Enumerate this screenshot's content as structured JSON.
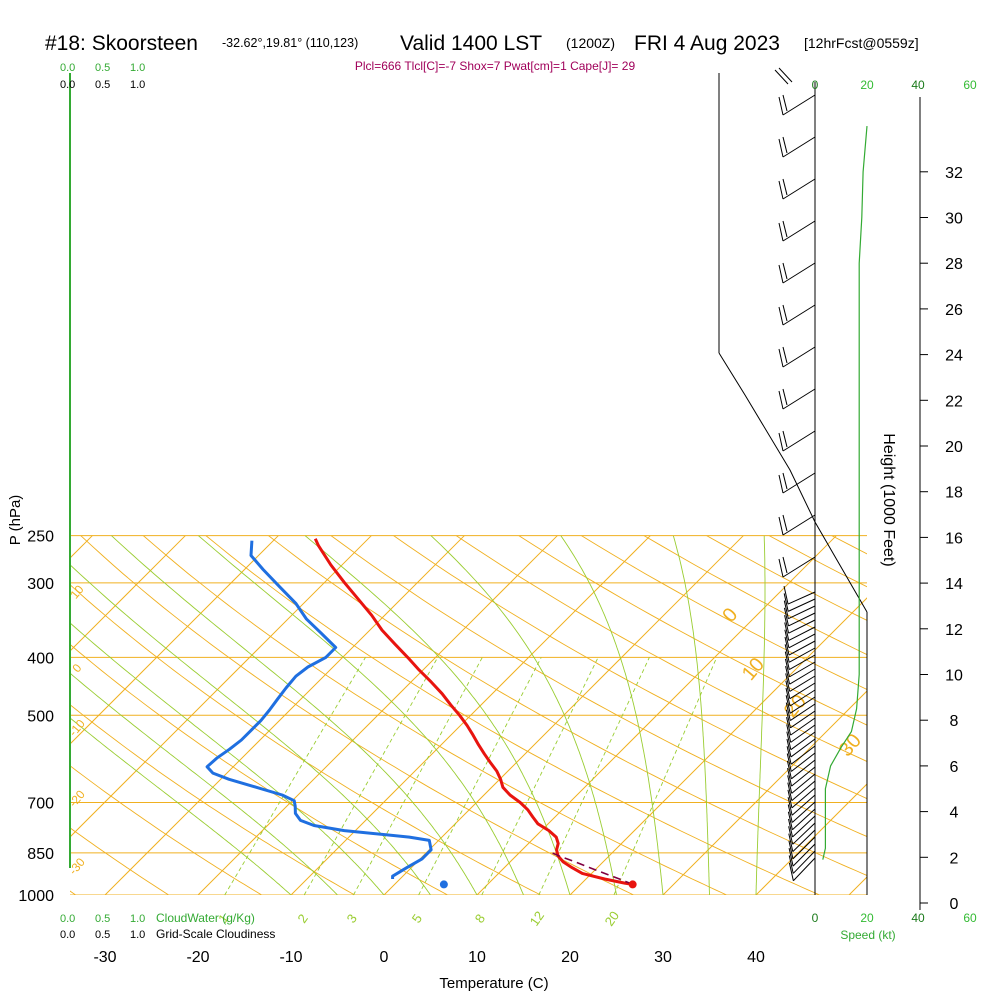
{
  "header": {
    "station": "#18: Skoorsteen",
    "coords": "-32.62°,19.81° (110,123)",
    "valid": "Valid 1400 LST",
    "zulu": "(1200Z)",
    "date": "FRI 4 Aug 2023",
    "fcst": "[12hrFcst@0559z]",
    "indices": "Plcl=666 Tlcl[C]=-7 Shox=7 Pwat[cm]=1 Cape[J]= 29"
  },
  "labels": {
    "ylabel": "P (hPa)",
    "xlabel": "Temperature (C)",
    "height_label": "Height (1000 Feet)",
    "cloudwater_label": "CloudWater (g/Kg)",
    "cloudiness_label": "Grid-Scale Cloudiness",
    "speed_label": "Speed (kt)",
    "scale_top_green": [
      "0.0",
      "0.5",
      "1.0"
    ],
    "scale_top_black": [
      "0.0",
      "0.5",
      "1.0"
    ],
    "scale_bottom_green": [
      "0.0",
      "0.5",
      "1.0"
    ],
    "scale_bottom_black": [
      "0.0",
      "0.5",
      "1.0"
    ],
    "speed_ticks_top_dark": [
      "0",
      "40"
    ],
    "speed_ticks_top_green": [
      "20",
      "60"
    ],
    "speed_ticks_bottom_dark": [
      "0",
      "40"
    ],
    "speed_ticks_bottom_green": [
      "20",
      "60"
    ]
  },
  "colors": {
    "temperature": "#e8140f",
    "dewpoint": "#1f6fe0",
    "isotherm": "#f0b020",
    "dry_adiabat": "#f0b020",
    "moist_adiabat": "#9acd32",
    "mixing_ratio": "#9acd32",
    "parcel": "#800040",
    "wind_speed": "#33aa33",
    "indices": "#a0005a"
  },
  "chart_data": {
    "type": "line",
    "subtype": "skew-T log-P sounding",
    "xlim": [
      -35,
      52
    ],
    "pressure_range": [
      1000,
      250
    ],
    "pressure_ticks": [
      1000,
      850,
      700,
      500,
      400,
      300,
      250
    ],
    "pressure_tick_labels": [
      "1000",
      "850",
      "700",
      "500",
      "400",
      "300",
      "250"
    ],
    "temp_ticks": [
      -30,
      -20,
      -10,
      0,
      10,
      20,
      30,
      40
    ],
    "temp_tick_labels": [
      "-30",
      "-20",
      "-10",
      "0",
      "10",
      "20",
      "30",
      "40"
    ],
    "height_ticks": [
      0,
      2,
      4,
      6,
      8,
      10,
      12,
      14,
      16,
      18,
      20,
      22,
      24,
      26,
      28,
      30,
      32
    ],
    "height_tick_labels": [
      "0",
      "2",
      "4",
      "6",
      "8",
      "10",
      "12",
      "14",
      "16",
      "18",
      "20",
      "22",
      "24",
      "26",
      "28",
      "30",
      "32"
    ],
    "isotherm_labels": [
      {
        "text": "-30",
        "p": 870
      },
      {
        "text": "-20",
        "p": 670
      },
      {
        "text": "-10",
        "p": 510
      },
      {
        "text": "0",
        "p": 405
      },
      {
        "text": "10",
        "p": 302
      },
      {
        "text": "0",
        "p": 345
      },
      {
        "text": "10",
        "p": 425
      },
      {
        "text": "20",
        "p": 490
      },
      {
        "text": "30",
        "p": 570
      }
    ],
    "mixing_ratio_labels": [
      {
        "text": "1",
        "w": 1
      },
      {
        "text": "2",
        "w": 2
      },
      {
        "text": "3",
        "w": 3
      },
      {
        "text": "5",
        "w": 5
      },
      {
        "text": "8",
        "w": 8
      },
      {
        "text": "12",
        "w": 12
      },
      {
        "text": "20",
        "w": 20
      }
    ],
    "series": [
      {
        "role": "temperature",
        "points": [
          {
            "p": 960,
            "t": 25.6
          },
          {
            "p": 955,
            "t": 24.6
          },
          {
            "p": 940,
            "t": 22.0
          },
          {
            "p": 920,
            "t": 19.0
          },
          {
            "p": 900,
            "t": 17.3
          },
          {
            "p": 880,
            "t": 15.7
          },
          {
            "p": 860,
            "t": 14.5
          },
          {
            "p": 840,
            "t": 13.7
          },
          {
            "p": 820,
            "t": 13.2
          },
          {
            "p": 800,
            "t": 12.3
          },
          {
            "p": 780,
            "t": 10.8
          },
          {
            "p": 760,
            "t": 8.9
          },
          {
            "p": 740,
            "t": 7.6
          },
          {
            "p": 720,
            "t": 6.3
          },
          {
            "p": 700,
            "t": 4.7
          },
          {
            "p": 680,
            "t": 2.8
          },
          {
            "p": 660,
            "t": 1.2
          },
          {
            "p": 640,
            "t": 0.1
          },
          {
            "p": 620,
            "t": -1.2
          },
          {
            "p": 600,
            "t": -2.8
          },
          {
            "p": 580,
            "t": -4.4
          },
          {
            "p": 560,
            "t": -6.0
          },
          {
            "p": 540,
            "t": -7.6
          },
          {
            "p": 520,
            "t": -9.3
          },
          {
            "p": 500,
            "t": -11.2
          },
          {
            "p": 480,
            "t": -13.3
          },
          {
            "p": 460,
            "t": -15.4
          },
          {
            "p": 440,
            "t": -17.8
          },
          {
            "p": 420,
            "t": -20.4
          },
          {
            "p": 400,
            "t": -23.0
          },
          {
            "p": 380,
            "t": -25.8
          },
          {
            "p": 360,
            "t": -28.7
          },
          {
            "p": 340,
            "t": -31.4
          },
          {
            "p": 320,
            "t": -34.5
          },
          {
            "p": 300,
            "t": -37.8
          },
          {
            "p": 280,
            "t": -41.2
          },
          {
            "p": 260,
            "t": -44.6
          },
          {
            "p": 253,
            "t": -45.7
          }
        ]
      },
      {
        "role": "dewpoint",
        "points": [
          {
            "p": 940,
            "t": -0.8
          },
          {
            "p": 930,
            "t": -1.1
          },
          {
            "p": 900,
            "t": -0.5
          },
          {
            "p": 870,
            "t": 0.2
          },
          {
            "p": 840,
            "t": 0.2
          },
          {
            "p": 810,
            "t": -1.0
          },
          {
            "p": 800,
            "t": -3.5
          },
          {
            "p": 780,
            "t": -11.2
          },
          {
            "p": 765,
            "t": -15.0
          },
          {
            "p": 750,
            "t": -17.0
          },
          {
            "p": 730,
            "t": -18.3
          },
          {
            "p": 710,
            "t": -19.1
          },
          {
            "p": 695,
            "t": -19.8
          },
          {
            "p": 680,
            "t": -21.7
          },
          {
            "p": 660,
            "t": -25.3
          },
          {
            "p": 640,
            "t": -29.1
          },
          {
            "p": 625,
            "t": -31.5
          },
          {
            "p": 610,
            "t": -32.8
          },
          {
            "p": 590,
            "t": -32.7
          },
          {
            "p": 570,
            "t": -32.3
          },
          {
            "p": 550,
            "t": -32.0
          },
          {
            "p": 530,
            "t": -32.0
          },
          {
            "p": 510,
            "t": -32.0
          },
          {
            "p": 490,
            "t": -32.2
          },
          {
            "p": 470,
            "t": -32.5
          },
          {
            "p": 450,
            "t": -32.8
          },
          {
            "p": 430,
            "t": -33.0
          },
          {
            "p": 415,
            "t": -32.7
          },
          {
            "p": 400,
            "t": -31.8
          },
          {
            "p": 385,
            "t": -31.8
          },
          {
            "p": 365,
            "t": -34.8
          },
          {
            "p": 345,
            "t": -38.0
          },
          {
            "p": 325,
            "t": -40.8
          },
          {
            "p": 305,
            "t": -44.3
          },
          {
            "p": 285,
            "t": -48.0
          },
          {
            "p": 270,
            "t": -50.8
          },
          {
            "p": 255,
            "t": -52.3
          }
        ]
      },
      {
        "role": "parcel",
        "points": [
          {
            "p": 960,
            "t": 25.6
          },
          {
            "p": 940,
            "t": 23.6
          },
          {
            "p": 920,
            "t": 21.4
          },
          {
            "p": 900,
            "t": 19.2
          },
          {
            "p": 880,
            "t": 17.0
          },
          {
            "p": 860,
            "t": 14.6
          },
          {
            "p": 845,
            "t": 13.0
          }
        ]
      }
    ],
    "surface_markers": [
      {
        "role": "temperature",
        "p": 960,
        "t": 25.6
      },
      {
        "role": "dewpoint",
        "p": 960,
        "t": 5.3
      }
    ],
    "wind_speed_profile": {
      "axis": "Speed (kt)",
      "points": [
        {
          "h": 1.9,
          "s": 3
        },
        {
          "h": 2.4,
          "s": 4
        },
        {
          "h": 3.5,
          "s": 4
        },
        {
          "h": 5.0,
          "s": 4
        },
        {
          "h": 6.0,
          "s": 6
        },
        {
          "h": 6.8,
          "s": 10
        },
        {
          "h": 7.5,
          "s": 14
        },
        {
          "h": 8.5,
          "s": 16
        },
        {
          "h": 10,
          "s": 17
        },
        {
          "h": 12,
          "s": 17
        },
        {
          "h": 14,
          "s": 17
        },
        {
          "h": 16,
          "s": 17
        },
        {
          "h": 18,
          "s": 17
        },
        {
          "h": 20,
          "s": 17
        },
        {
          "h": 22,
          "s": 17
        },
        {
          "h": 24,
          "s": 17
        },
        {
          "h": 26,
          "s": 17
        },
        {
          "h": 28,
          "s": 17
        },
        {
          "h": 30,
          "s": 18
        },
        {
          "h": 32,
          "s": 18.5
        },
        {
          "h": 34,
          "s": 20
        }
      ]
    },
    "grid": true
  }
}
